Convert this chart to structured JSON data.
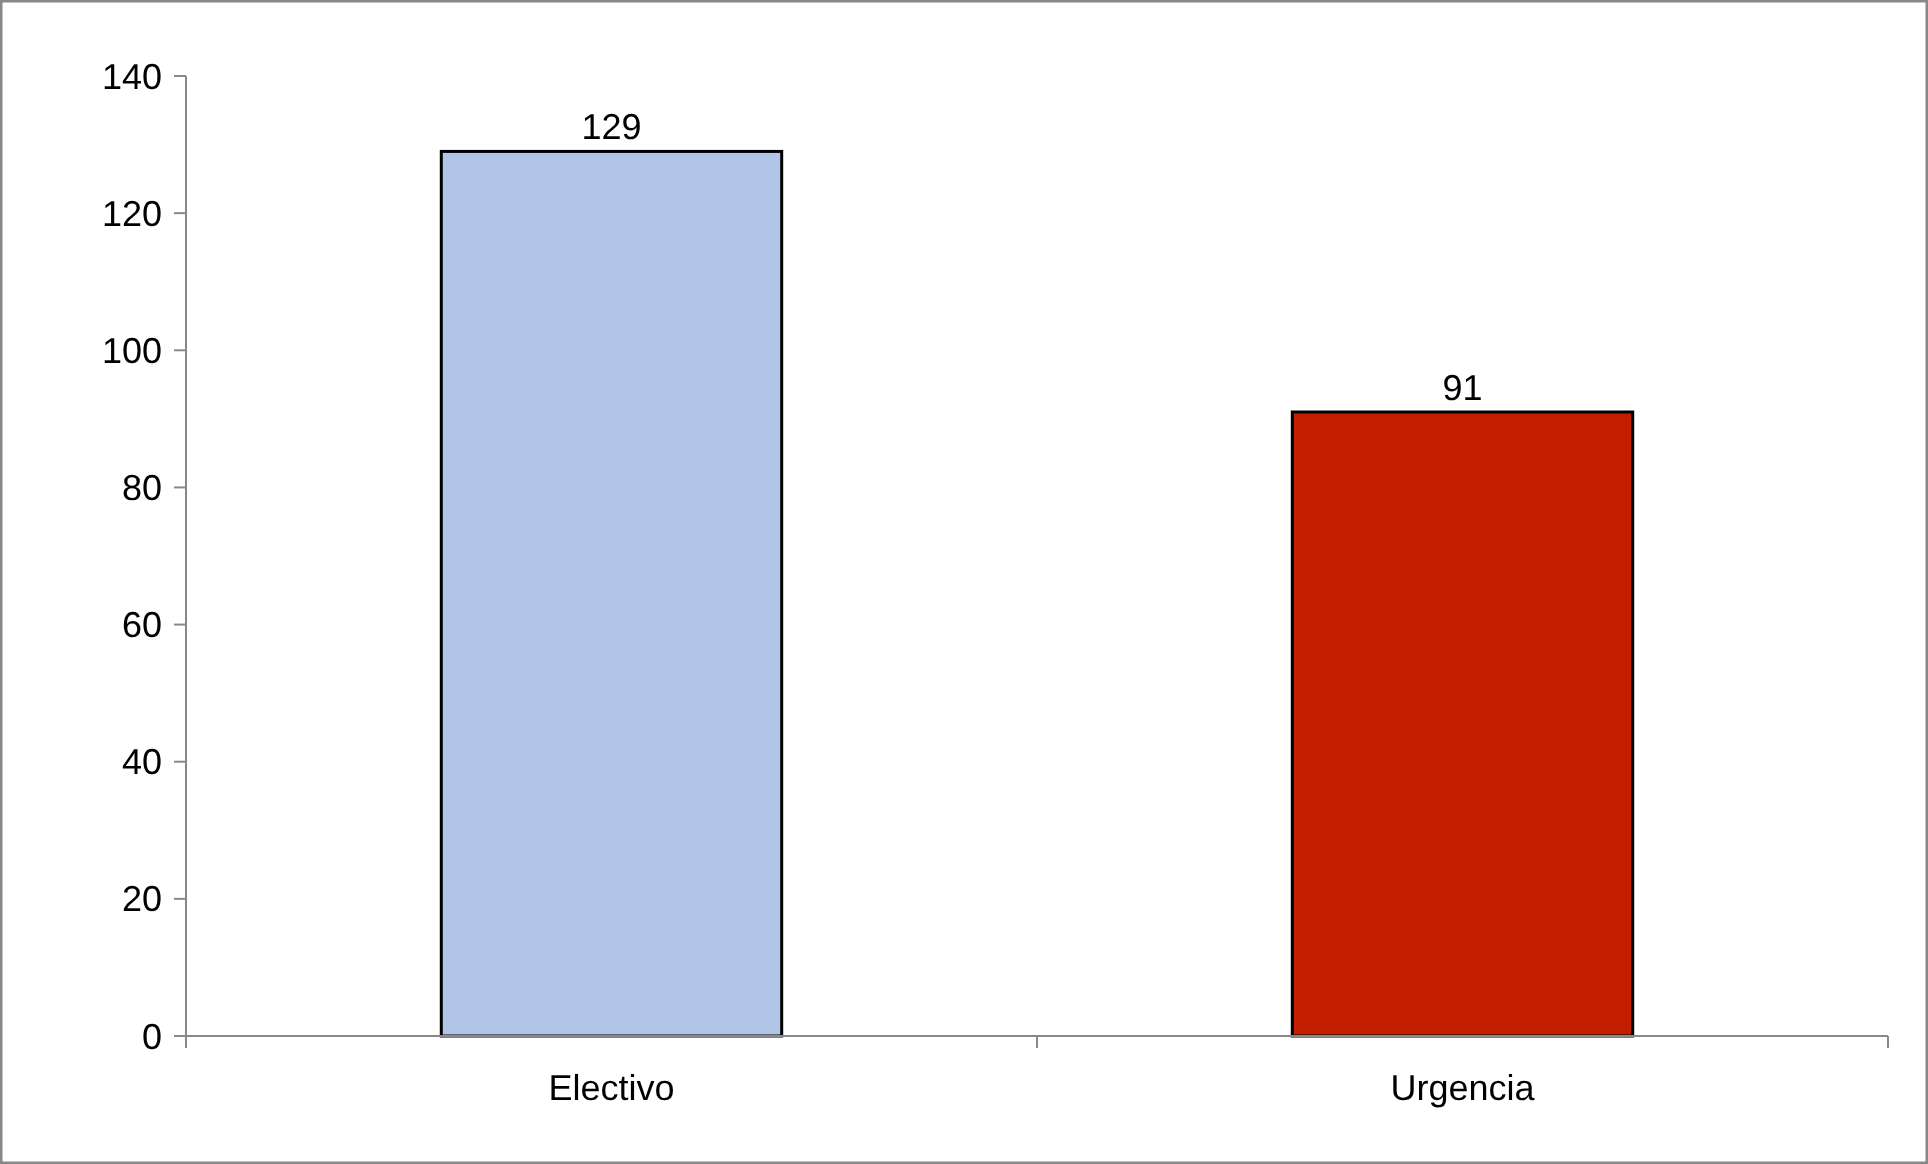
{
  "chart_data": {
    "type": "bar",
    "categories": [
      "Electivo",
      "Urgencia"
    ],
    "values": [
      129,
      91
    ],
    "colors": [
      "#b0c5e8",
      "#c41e00"
    ],
    "ylim": [
      0,
      140
    ],
    "yticks": [
      0,
      20,
      40,
      60,
      80,
      100,
      120,
      140
    ],
    "data_labels": true,
    "grid": false
  }
}
